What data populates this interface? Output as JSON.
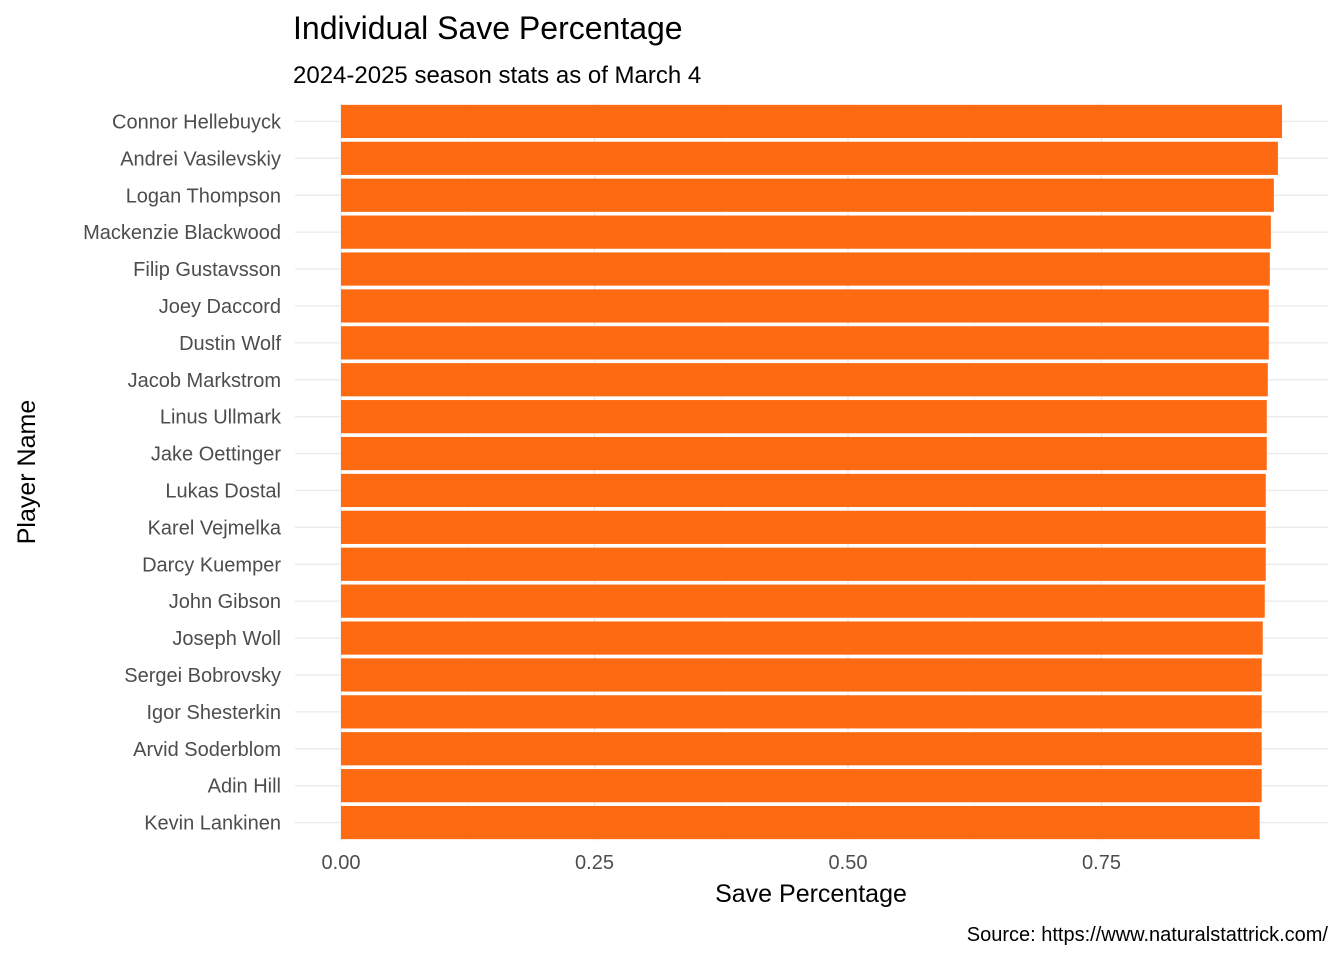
{
  "chart_data": {
    "type": "bar",
    "orientation": "horizontal",
    "title": "Individual Save Percentage",
    "subtitle": "2024-2025 season stats as of March 4",
    "xlabel": "Save Percentage",
    "ylabel": "Player Name",
    "caption": "Source: https://www.naturalstattrick.com/",
    "xlim": [
      0,
      0.93
    ],
    "xticks": [
      0,
      0.25,
      0.5,
      0.75
    ],
    "xtick_labels": [
      "0.00",
      "0.25",
      "0.50",
      "0.75"
    ],
    "grid": true,
    "bar_color": "#fd6a12",
    "categories": [
      "Connor Hellebuyck",
      "Andrei Vasilevskiy",
      "Logan Thompson",
      "Mackenzie Blackwood",
      "Filip Gustavsson",
      "Joey Daccord",
      "Dustin Wolf",
      "Jacob Markstrom",
      "Linus Ullmark",
      "Jake Oettinger",
      "Lukas Dostal",
      "Karel Vejmelka",
      "Darcy Kuemper",
      "John Gibson",
      "Joseph Woll",
      "Sergei Bobrovsky",
      "Igor Shesterkin",
      "Arvid Soderblom",
      "Adin Hill",
      "Kevin Lankinen"
    ],
    "values": [
      0.928,
      0.924,
      0.92,
      0.917,
      0.916,
      0.915,
      0.915,
      0.914,
      0.913,
      0.913,
      0.912,
      0.912,
      0.912,
      0.911,
      0.909,
      0.908,
      0.908,
      0.908,
      0.908,
      0.906
    ]
  }
}
